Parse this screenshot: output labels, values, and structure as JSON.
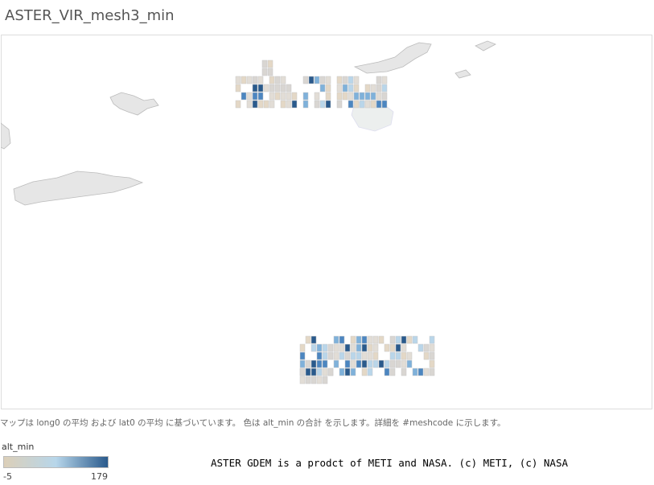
{
  "title": "ASTER_VIR_mesh3_min",
  "caption": "マップは long0 の平均 および lat0 の平均 に基づいています。 色は alt_min の合計 を示します。詳細を #meshcode に示します。",
  "legend": {
    "title": "alt_min",
    "min": -5,
    "max": 179,
    "colors": [
      "#dccfb8",
      "#b7d6ea",
      "#2a5a8c"
    ]
  },
  "attribution": "ASTER GDEM is a prodct of METI and NASA. (c) METI, (c) NASA"
}
